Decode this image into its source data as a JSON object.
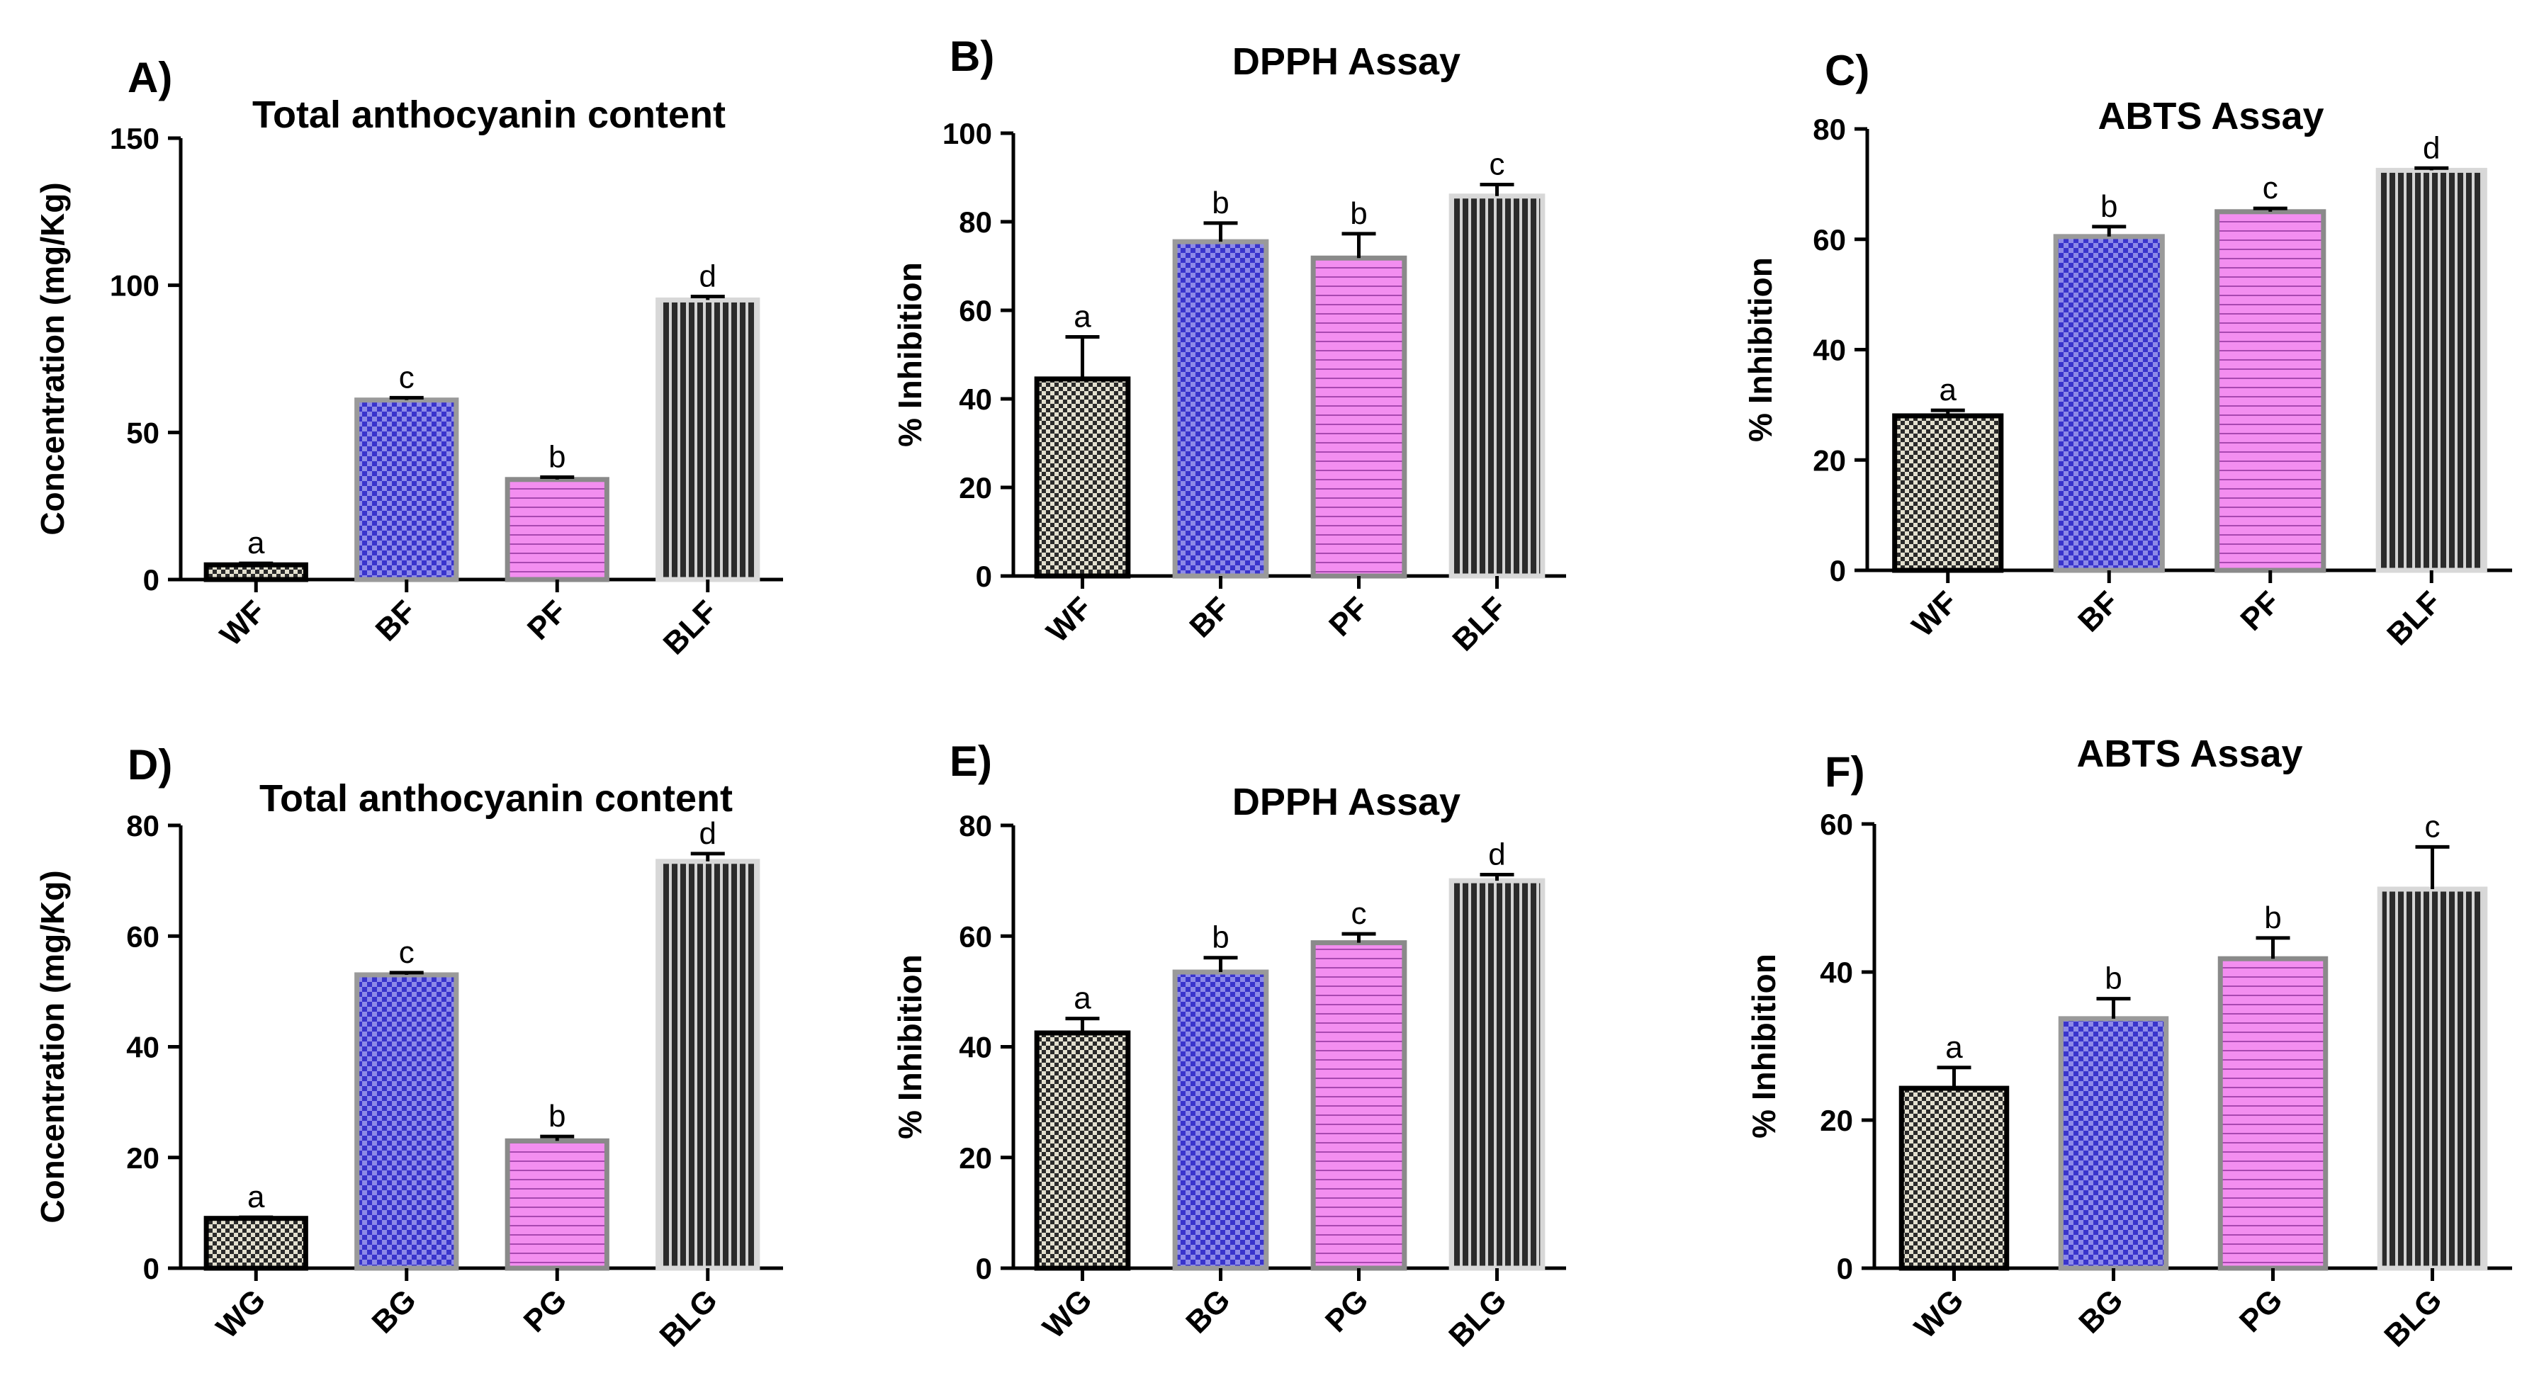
{
  "chart_data": [
    {
      "type": "bar",
      "panel": "A)",
      "title": "Total anthocyanin content",
      "xlabel": "",
      "ylabel": "Concentration (mg/Kg)",
      "ylim": [
        0,
        150
      ],
      "yticks": [
        0,
        50,
        100,
        150
      ],
      "categories": [
        "WF",
        "BF",
        "PF",
        "BLF"
      ],
      "values": [
        5,
        61,
        34,
        95
      ],
      "errors": [
        0.5,
        0.8,
        0.8,
        1.2
      ],
      "significance": [
        "a",
        "c",
        "b",
        "d"
      ],
      "rotate_labels": true,
      "grid": false
    },
    {
      "type": "bar",
      "panel": "B)",
      "title": "DPPH Assay",
      "xlabel": "",
      "ylabel": "% Inhibition",
      "ylim": [
        0,
        100
      ],
      "yticks": [
        0,
        20,
        40,
        60,
        80,
        100
      ],
      "categories": [
        "WF",
        "BF",
        "PF",
        "BLF"
      ],
      "values": [
        44.5,
        75.5,
        71.8,
        85.8
      ],
      "errors": [
        9.5,
        4.2,
        5.5,
        2.6
      ],
      "significance": [
        "a",
        "b",
        "b",
        "c"
      ],
      "rotate_labels": true,
      "grid": false
    },
    {
      "type": "bar",
      "panel": "C)",
      "title": "ABTS Assay",
      "xlabel": "",
      "ylabel": "% Inhibition",
      "ylim": [
        0,
        80
      ],
      "yticks": [
        0,
        20,
        40,
        60,
        80
      ],
      "categories": [
        "WF",
        "BF",
        "PF",
        "BLF"
      ],
      "values": [
        28,
        60.5,
        65,
        72.5
      ],
      "errors": [
        1,
        1.8,
        0.6,
        0.4
      ],
      "significance": [
        "a",
        "b",
        "c",
        "d"
      ],
      "rotate_labels": true,
      "grid": false
    },
    {
      "type": "bar",
      "panel": "D)",
      "title": "Total anthocyanin content",
      "xlabel": "",
      "ylabel": "Concentration (mg/Kg)",
      "ylim": [
        0,
        80
      ],
      "yticks": [
        0,
        20,
        40,
        60,
        80
      ],
      "categories": [
        "WG",
        "BG",
        "PG",
        "BLG"
      ],
      "values": [
        9,
        53,
        23,
        73.5
      ],
      "errors": [
        0.2,
        0.4,
        0.8,
        1.4
      ],
      "significance": [
        "a",
        "c",
        "b",
        "d"
      ],
      "rotate_labels": true,
      "grid": false
    },
    {
      "type": "bar",
      "panel": "E)",
      "title": "DPPH Assay",
      "xlabel": "",
      "ylabel": "% Inhibition",
      "ylim": [
        0,
        80
      ],
      "yticks": [
        0,
        20,
        40,
        60,
        80
      ],
      "categories": [
        "WG",
        "BG",
        "PG",
        "BLG"
      ],
      "values": [
        42.5,
        53.5,
        58.8,
        70
      ],
      "errors": [
        2.6,
        2.6,
        1.6,
        1.1
      ],
      "significance": [
        "a",
        "b",
        "c",
        "d"
      ],
      "rotate_labels": true,
      "grid": false
    },
    {
      "type": "bar",
      "panel": "F)",
      "title": "ABTS Assay",
      "xlabel": "",
      "ylabel": "% Inhibition",
      "ylim": [
        0,
        60
      ],
      "yticks": [
        0,
        20,
        40,
        60
      ],
      "categories": [
        "WG",
        "BG",
        "PG",
        "BLG"
      ],
      "values": [
        24.3,
        33.7,
        41.8,
        51.2
      ],
      "errors": [
        2.8,
        2.7,
        2.8,
        5.7
      ],
      "significance": [
        "a",
        "b",
        "b",
        "c"
      ],
      "rotate_labels": true,
      "grid": false
    }
  ],
  "bar_styles": [
    {
      "name": "white",
      "fill": "#e3e0cf",
      "pattern_color": "#2a2a2a",
      "pattern": "checker",
      "outline": "#000000"
    },
    {
      "name": "blue",
      "fill": "#8d8ae8",
      "pattern_color": "#3934cc",
      "pattern": "checker",
      "outline": "#9a9a9a"
    },
    {
      "name": "purple",
      "fill": "#f38ef0",
      "pattern_color": "#a848b0",
      "pattern": "hlines",
      "outline": "#8a8a8a"
    },
    {
      "name": "black",
      "fill": "#d4d4d4",
      "pattern_color": "#2b2b2b",
      "pattern": "vlines",
      "outline": "#d8d8d8"
    }
  ]
}
